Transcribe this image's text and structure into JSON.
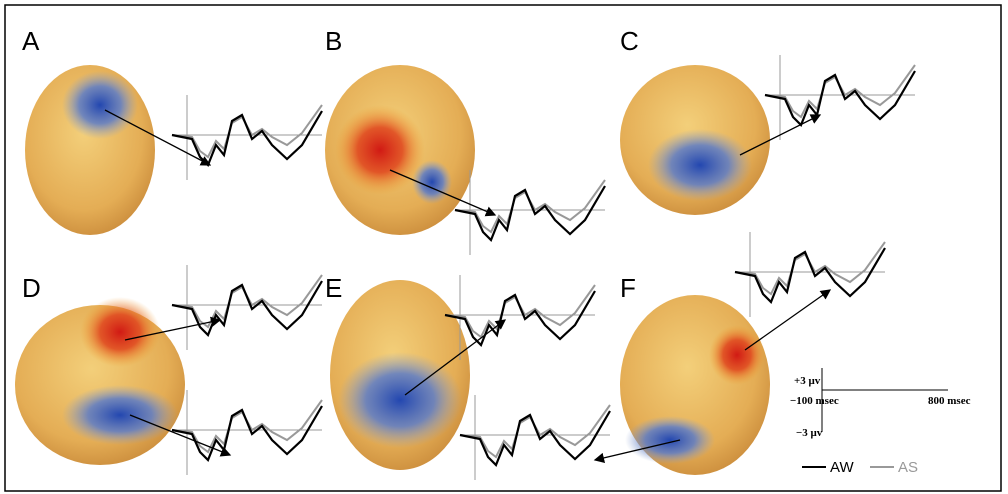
{
  "panels": [
    {
      "label": "A"
    },
    {
      "label": "B"
    },
    {
      "label": "C"
    },
    {
      "label": "D"
    },
    {
      "label": "E"
    },
    {
      "label": "F"
    }
  ],
  "scale": {
    "top": "+3 μv",
    "left": "−100 msec",
    "right": "800 msec",
    "bottom": "−3 μv"
  },
  "legend": [
    {
      "name": "AW",
      "color": "#000000"
    },
    {
      "name": "AS",
      "color": "#999999"
    }
  ]
}
